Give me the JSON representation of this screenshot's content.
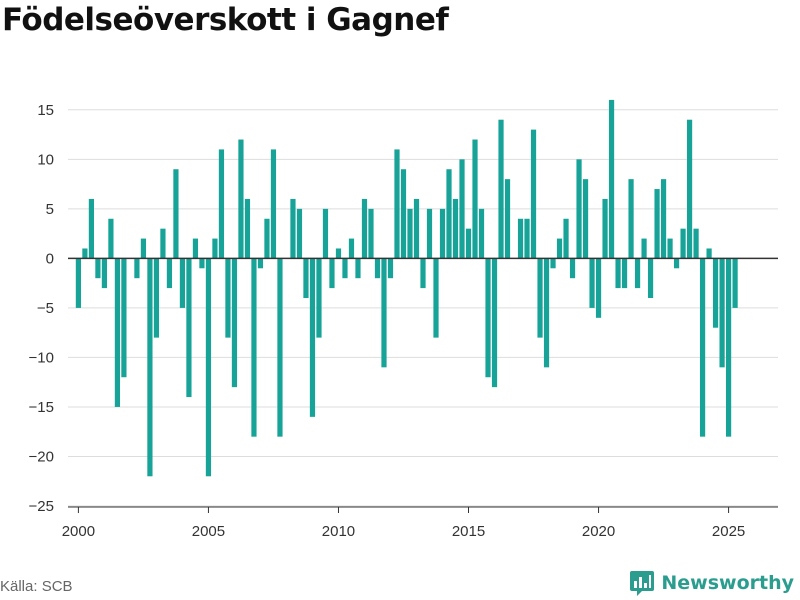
{
  "title": "Födelseöverskott i Gagnef",
  "source": "Källa: SCB",
  "brand": "Newsworthy",
  "colors": {
    "bar": "#17a398",
    "grid": "#dddddd",
    "axis": "#333333",
    "brand": "#2a9d8f"
  },
  "chart_data": {
    "type": "bar",
    "title": "Födelseöverskott i Gagnef",
    "xlabel": "",
    "ylabel": "",
    "ylim": [
      -25,
      17
    ],
    "yticks": [
      15,
      10,
      5,
      0,
      -5,
      -10,
      -15,
      -20,
      -25
    ],
    "ytick_labels": [
      "15",
      "10",
      "5",
      "0",
      "−5",
      "−10",
      "−15",
      "−20",
      "−25"
    ],
    "xlim": [
      1999.6,
      2026.9
    ],
    "xticks": [
      2000,
      2005,
      2010,
      2015,
      2020,
      2025
    ],
    "xtick_labels": [
      "2000",
      "2005",
      "2010",
      "2015",
      "2020",
      "2025"
    ],
    "grid": true,
    "frequency": "quarterly",
    "x": [
      2000.0,
      2000.25,
      2000.5,
      2000.75,
      2001.0,
      2001.25,
      2001.5,
      2001.75,
      2002.0,
      2002.25,
      2002.5,
      2002.75,
      2003.0,
      2003.25,
      2003.5,
      2003.75,
      2004.0,
      2004.25,
      2004.5,
      2004.75,
      2005.0,
      2005.25,
      2005.5,
      2005.75,
      2006.0,
      2006.25,
      2006.5,
      2006.75,
      2007.0,
      2007.25,
      2007.5,
      2007.75,
      2008.0,
      2008.25,
      2008.5,
      2008.75,
      2009.0,
      2009.25,
      2009.5,
      2009.75,
      2010.0,
      2010.25,
      2010.5,
      2010.75,
      2011.0,
      2011.25,
      2011.5,
      2011.75,
      2012.0,
      2012.25,
      2012.5,
      2012.75,
      2013.0,
      2013.25,
      2013.5,
      2013.75,
      2014.0,
      2014.25,
      2014.5,
      2014.75,
      2015.0,
      2015.25,
      2015.5,
      2015.75,
      2016.0,
      2016.25,
      2016.5,
      2016.75,
      2017.0,
      2017.25,
      2017.5,
      2017.75,
      2018.0,
      2018.25,
      2018.5,
      2018.75,
      2019.0,
      2019.25,
      2019.5,
      2019.75,
      2020.0,
      2020.25,
      2020.5,
      2020.75,
      2021.0,
      2021.25,
      2021.5,
      2021.75,
      2022.0,
      2022.25,
      2022.5,
      2022.75,
      2023.0,
      2023.25,
      2023.5,
      2023.75,
      2024.0,
      2024.25,
      2024.5,
      2024.75,
      2025.0,
      2025.25
    ],
    "values": [
      -5,
      1,
      6,
      -2,
      -3,
      4,
      -15,
      -12,
      0,
      -2,
      2,
      -22,
      -8,
      3,
      -3,
      9,
      -5,
      -14,
      2,
      -1,
      -22,
      2,
      11,
      -8,
      -13,
      12,
      6,
      -18,
      -1,
      4,
      11,
      -18,
      0,
      6,
      5,
      -4,
      -16,
      -8,
      5,
      -3,
      1,
      -2,
      2,
      -2,
      6,
      5,
      -2,
      -11,
      -2,
      11,
      9,
      5,
      6,
      -3,
      5,
      -8,
      5,
      9,
      6,
      10,
      3,
      12,
      5,
      -12,
      -13,
      14,
      8,
      0,
      4,
      4,
      13,
      -8,
      -11,
      -1,
      2,
      4,
      -2,
      10,
      8,
      -5,
      -6,
      6,
      16,
      -3,
      -3,
      8,
      -3,
      2,
      -4,
      7,
      8,
      2,
      -1,
      3,
      14,
      3,
      -18,
      1,
      -7,
      -11,
      -18,
      -5
    ]
  }
}
